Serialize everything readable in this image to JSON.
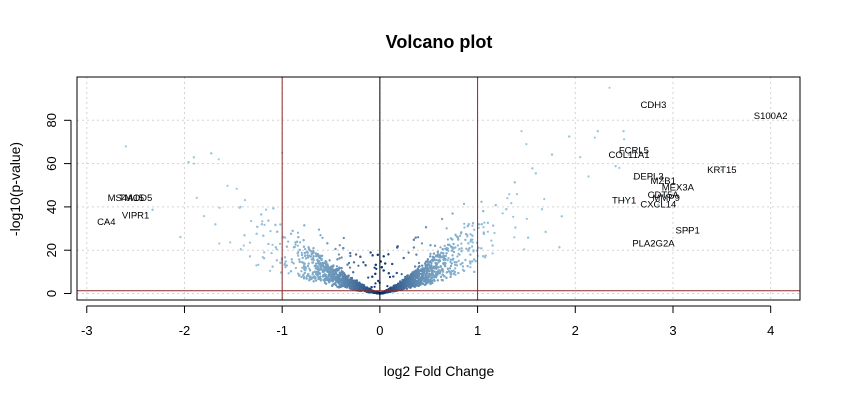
{
  "chart_data": {
    "type": "scatter",
    "title": "Volcano plot",
    "xlabel": "log2 Fold Change",
    "ylabel": "-log10(p-value)",
    "xlim": [
      -3.1,
      4.3
    ],
    "ylim": [
      -3,
      100
    ],
    "x_ticks": [
      -3,
      -2,
      -1,
      0,
      1,
      2,
      3,
      4
    ],
    "y_ticks": [
      0,
      20,
      40,
      60,
      80
    ],
    "grid": true,
    "vertical_reference_lines": [
      -1,
      0,
      1
    ],
    "horizontal_reference_line": 1.3,
    "colors": {
      "points_light": "#9ecae1",
      "points_dense": "#08306b",
      "threshold_lines": "#8b2a2a",
      "zero_line": "#000000",
      "grid": "#d3d3d3"
    },
    "labeled_genes": [
      {
        "label": "S100A2",
        "x": 4.0,
        "y": 82
      },
      {
        "label": "CDH3",
        "x": 2.8,
        "y": 87
      },
      {
        "label": "KRT15",
        "x": 3.5,
        "y": 57
      },
      {
        "label": "FCRL5",
        "x": 2.6,
        "y": 66
      },
      {
        "label": "COL11A1",
        "x": 2.55,
        "y": 64
      },
      {
        "label": "DEPL3",
        "x": 2.75,
        "y": 54
      },
      {
        "label": "MZB1",
        "x": 2.9,
        "y": 52
      },
      {
        "label": "MEX3A",
        "x": 3.05,
        "y": 49
      },
      {
        "label": "CDT5A",
        "x": 2.9,
        "y": 45.5
      },
      {
        "label": "MMP9",
        "x": 2.93,
        "y": 44
      },
      {
        "label": "THY1",
        "x": 2.5,
        "y": 43
      },
      {
        "label": "CXCL14",
        "x": 2.85,
        "y": 41
      },
      {
        "label": "SPP1",
        "x": 3.15,
        "y": 29
      },
      {
        "label": "PLA2G2A",
        "x": 2.8,
        "y": 23
      },
      {
        "label": "MS4A15",
        "x": -2.6,
        "y": 44
      },
      {
        "label": "TMOD5",
        "x": -2.5,
        "y": 44
      },
      {
        "label": "VIPR1",
        "x": -2.5,
        "y": 36
      },
      {
        "label": "CA4",
        "x": -2.8,
        "y": 33
      }
    ]
  }
}
